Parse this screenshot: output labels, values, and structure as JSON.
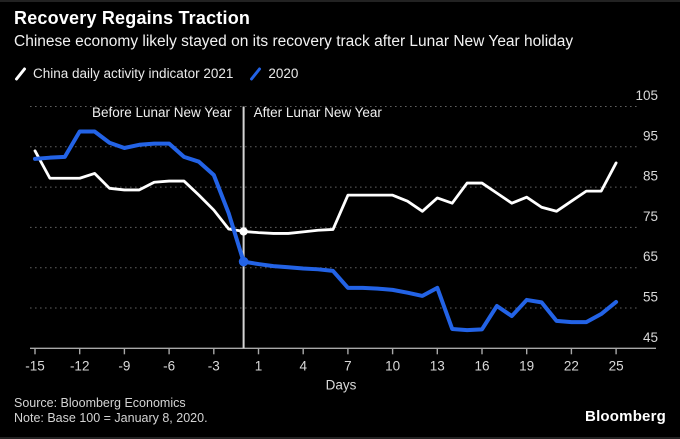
{
  "footer": {
    "source": "Source: Bloomberg Economics",
    "note": "Note: Base 100 = January 8, 2020.",
    "brand": "Bloomberg"
  },
  "chart_data": {
    "type": "line",
    "title": "Recovery Regains Traction",
    "subtitle": "Chinese economy likely stayed on its recovery track after Lunar New Year holiday",
    "x_axis_label": "Days",
    "x_days": [
      -15,
      -14,
      -13,
      -12,
      -11,
      -10,
      -9,
      -8,
      -7,
      -6,
      -5,
      -4,
      -3,
      -2,
      -1,
      1,
      2,
      3,
      4,
      5,
      6,
      7,
      8,
      9,
      10,
      11,
      12,
      13,
      14,
      15,
      16,
      17,
      18,
      19,
      20,
      21,
      22,
      23,
      24,
      25
    ],
    "x_ticks": [
      -15,
      -12,
      -9,
      -6,
      -3,
      1,
      4,
      7,
      10,
      13,
      16,
      19,
      22,
      25
    ],
    "y_ticks": [
      105,
      95,
      85,
      75,
      65,
      55,
      45
    ],
    "ylim": [
      45,
      105
    ],
    "baseline": 45,
    "grid": "horizontal-dotted",
    "legend_position": "top-left",
    "event_line_day": -1,
    "region_labels": {
      "before": "Before Lunar New Year",
      "after": "After Lunar New Year"
    },
    "series": [
      {
        "name": "China daily activity indicator 2021",
        "color": "#ffffff",
        "values": [
          94,
          87.2,
          87.2,
          87.2,
          88.4,
          84.7,
          84.3,
          84.3,
          86.2,
          86.5,
          86.5,
          83,
          79.3,
          74.6,
          74,
          73.7,
          73.5,
          73.5,
          73.9,
          74.3,
          74.5,
          83,
          83,
          83,
          83,
          81.5,
          79,
          82.3,
          81,
          86,
          86,
          83.5,
          81,
          82.5,
          80,
          79,
          81.5,
          84,
          84,
          91
        ]
      },
      {
        "name": "2020",
        "color": "#2363e6",
        "values": [
          92,
          92.3,
          92.5,
          98.8,
          98.8,
          96,
          94.7,
          95.5,
          95.8,
          95.8,
          92.5,
          91.3,
          88,
          78.5,
          66.5,
          65.9,
          65.4,
          65.1,
          64.8,
          64.6,
          64.2,
          60,
          60,
          59.8,
          59.5,
          58.8,
          58,
          60,
          49.8,
          49.5,
          49.7,
          55.5,
          53,
          57,
          56.4,
          51.8,
          51.5,
          51.5,
          53.5,
          56.5
        ]
      }
    ],
    "markers": [
      {
        "series": 0,
        "day": -1,
        "value": 74
      },
      {
        "series": 1,
        "day": -1,
        "value": 66.5
      }
    ]
  }
}
